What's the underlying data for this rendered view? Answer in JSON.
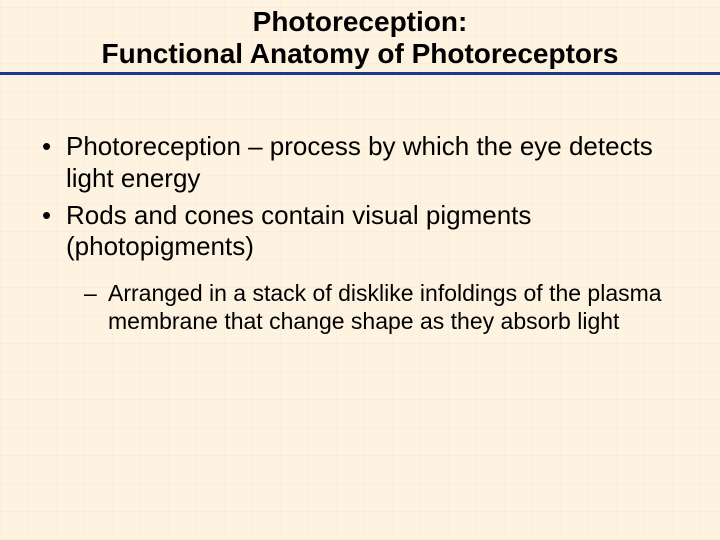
{
  "title": {
    "line1": "Photoreception:",
    "line2": "Functional Anatomy of Photoreceptors"
  },
  "colors": {
    "background": "#fdf3e0",
    "title_underline": "#1a3a8a",
    "text": "#000000"
  },
  "typography": {
    "title_fontsize_pt": 21,
    "body_fontsize_pt": 20,
    "sub_fontsize_pt": 17,
    "font_family": "Arial"
  },
  "bullets": [
    {
      "marker": "•",
      "text": "Photoreception – process by which the eye detects light energy"
    },
    {
      "marker": "•",
      "text": "Rods and cones contain visual pigments (photopigments)",
      "sub": [
        {
          "marker": "–",
          "text": "Arranged in a stack of disklike infoldings of the plasma membrane that change shape as they absorb light"
        }
      ]
    }
  ]
}
